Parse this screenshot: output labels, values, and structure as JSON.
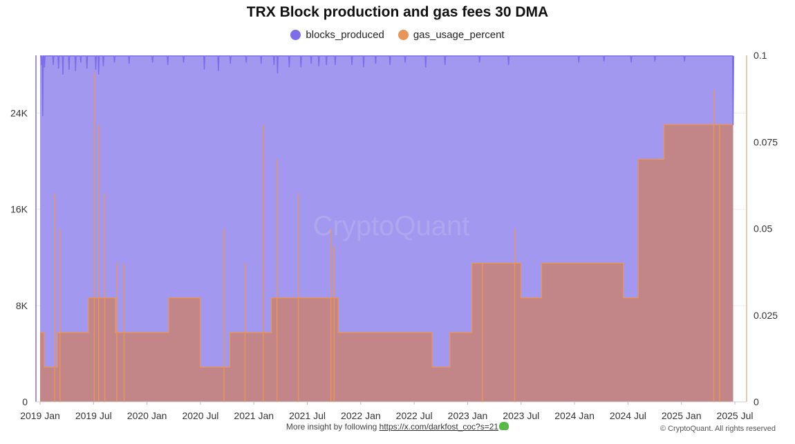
{
  "chart_data": {
    "type": "area",
    "title": "TRX Block production and gas fees 30 DMA",
    "legend_position": "top-center",
    "grid": true,
    "x_ticks": [
      "2019 Jan",
      "2019 Jul",
      "2020 Jan",
      "2020 Jul",
      "2021 Jan",
      "2021 Jul",
      "2022 Jan",
      "2022 Jul",
      "2023 Jan",
      "2023 Jul",
      "2024 Jan",
      "2024 Jul",
      "2025 Jan",
      "2025 Jul"
    ],
    "y_left": {
      "ticks": [
        "0",
        "8K",
        "16K",
        "24K"
      ],
      "ylim": [
        0,
        28800
      ]
    },
    "y_right": {
      "ticks": [
        "0",
        "0.025",
        "0.05",
        "0.075",
        "0.1"
      ],
      "ylim": [
        0,
        0.1
      ]
    },
    "x_range": [
      "2019-01-01",
      "2025-07-01"
    ],
    "series": [
      {
        "name": "blocks_produced",
        "color": "#7b6ee8",
        "axis": "left",
        "baseline": 28750,
        "end": "2025-06-25",
        "dips": [
          [
            "2019-01-06",
            28000
          ],
          [
            "2019-01-10",
            23750
          ],
          [
            "2019-01-16",
            27800
          ],
          [
            "2019-02-15",
            28000
          ],
          [
            "2019-03-05",
            27700
          ],
          [
            "2019-03-20",
            27200
          ],
          [
            "2019-04-10",
            27600
          ],
          [
            "2019-05-02",
            27500
          ],
          [
            "2019-05-20",
            28200
          ],
          [
            "2019-06-10",
            27700
          ],
          [
            "2019-07-10",
            27600
          ],
          [
            "2019-07-20",
            27200
          ],
          [
            "2019-08-05",
            27900
          ],
          [
            "2019-09-12",
            28200
          ],
          [
            "2019-11-01",
            28100
          ],
          [
            "2020-01-20",
            28200
          ],
          [
            "2020-03-12",
            28000
          ],
          [
            "2020-05-05",
            28200
          ],
          [
            "2020-07-15",
            27600
          ],
          [
            "2020-09-01",
            27500
          ],
          [
            "2020-10-12",
            28100
          ],
          [
            "2020-12-05",
            28200
          ],
          [
            "2021-01-25",
            28100
          ],
          [
            "2021-03-10",
            28000
          ],
          [
            "2021-03-22",
            27300
          ],
          [
            "2021-05-01",
            27800
          ],
          [
            "2021-06-10",
            27800
          ],
          [
            "2021-07-15",
            28100
          ],
          [
            "2021-08-10",
            27900
          ],
          [
            "2021-09-05",
            28000
          ],
          [
            "2021-10-05",
            28000
          ],
          [
            "2021-12-01",
            28000
          ],
          [
            "2022-01-10",
            27800
          ],
          [
            "2022-02-20",
            28100
          ],
          [
            "2022-04-10",
            28000
          ],
          [
            "2022-06-01",
            28200
          ],
          [
            "2022-08-10",
            27800
          ],
          [
            "2022-10-15",
            28000
          ],
          [
            "2023-02-10",
            28200
          ],
          [
            "2023-05-20",
            28000
          ],
          [
            "2024-01-15",
            28200
          ],
          [
            "2024-04-10",
            28300
          ],
          [
            "2024-07-12",
            28200
          ],
          [
            "2024-10-01",
            28300
          ],
          [
            "2025-01-10",
            28300
          ],
          [
            "2025-06-25",
            23000
          ]
        ]
      },
      {
        "name": "gas_usage_percent",
        "color": "#e8955a",
        "axis": "right",
        "levels": [
          [
            "2019-01-01",
            0.02
          ],
          [
            "2019-01-15",
            0.01
          ],
          [
            "2019-03-01",
            0.02
          ],
          [
            "2019-06-15",
            0.03
          ],
          [
            "2019-09-15",
            0.02
          ],
          [
            "2020-02-01",
            0.02
          ],
          [
            "2020-03-15",
            0.03
          ],
          [
            "2020-07-01",
            0.01
          ],
          [
            "2020-10-10",
            0.02
          ],
          [
            "2021-03-01",
            0.03
          ],
          [
            "2021-08-15",
            0.03
          ],
          [
            "2021-10-15",
            0.02
          ],
          [
            "2022-03-01",
            0.02
          ],
          [
            "2022-09-01",
            0.01
          ],
          [
            "2022-11-01",
            0.02
          ],
          [
            "2023-01-15",
            0.04
          ],
          [
            "2023-07-01",
            0.03
          ],
          [
            "2023-09-10",
            0.04
          ],
          [
            "2024-02-01",
            0.04
          ],
          [
            "2024-06-15",
            0.03
          ],
          [
            "2024-08-05",
            0.07
          ],
          [
            "2024-11-01",
            0.08
          ],
          [
            "2025-06-25",
            0.08
          ]
        ],
        "spikes": [
          [
            "2019-02-20",
            0.06
          ],
          [
            "2019-03-10",
            0.05
          ],
          [
            "2019-07-05",
            0.095
          ],
          [
            "2019-07-20",
            0.08
          ],
          [
            "2019-08-10",
            0.06
          ],
          [
            "2019-09-20",
            0.04
          ],
          [
            "2019-10-15",
            0.04
          ],
          [
            "2020-09-20",
            0.05
          ],
          [
            "2020-12-01",
            0.04
          ],
          [
            "2021-02-01",
            0.08
          ],
          [
            "2021-03-20",
            0.07
          ],
          [
            "2021-06-01",
            0.06
          ],
          [
            "2021-09-20",
            0.05
          ],
          [
            "2021-10-01",
            0.045
          ],
          [
            "2023-02-20",
            0.04
          ],
          [
            "2023-06-10",
            0.05
          ],
          [
            "2025-04-20",
            0.09
          ],
          [
            "2025-05-10",
            0.08
          ]
        ]
      }
    ]
  },
  "watermark": "CryptoQuant",
  "footer": {
    "text": "More insight by following ",
    "link": "https://x.com/darkfost_coc?s=21",
    "copyright": "© CryptoQuant. All rights reserved"
  }
}
